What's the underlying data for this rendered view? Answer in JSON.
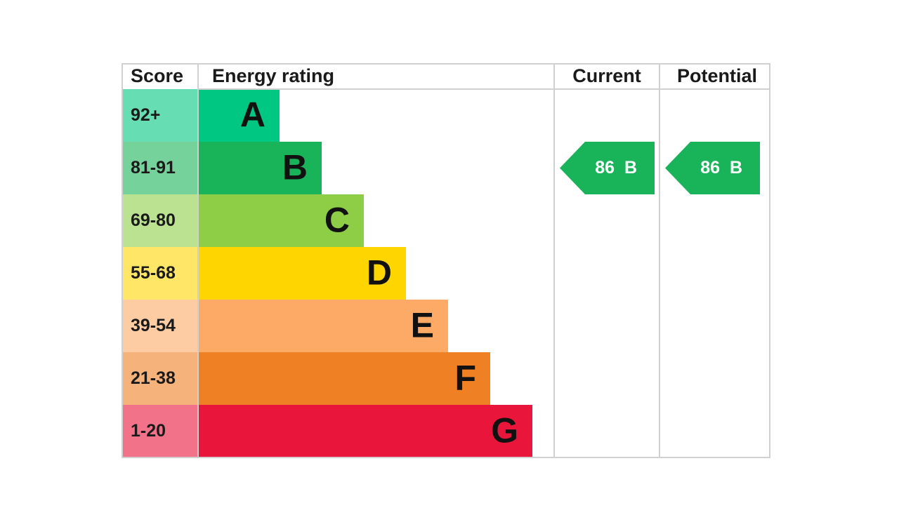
{
  "header": {
    "score": "Score",
    "rating": "Energy rating",
    "current": "Current",
    "potential": "Potential"
  },
  "rows": [
    {
      "score": "92+",
      "band": "A",
      "color": "#00c781"
    },
    {
      "score": "81-91",
      "band": "B",
      "color": "#19b459"
    },
    {
      "score": "69-80",
      "band": "C",
      "color": "#8dce46"
    },
    {
      "score": "55-68",
      "band": "D",
      "color": "#ffd500"
    },
    {
      "score": "39-54",
      "band": "E",
      "color": "#fcaa65"
    },
    {
      "score": "21-38",
      "band": "F",
      "color": "#ef8023"
    },
    {
      "score": "1-20",
      "band": "G",
      "color": "#e9153b"
    }
  ],
  "current": {
    "value": 86,
    "band": "B"
  },
  "potential": {
    "value": 86,
    "band": "B"
  }
}
